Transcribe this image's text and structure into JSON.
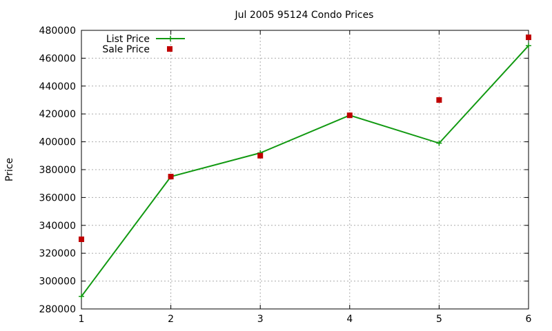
{
  "chart_data": {
    "type": "line",
    "title": "Jul 2005 95124 Condo Prices",
    "xlabel": "",
    "ylabel": "Price",
    "xlim": [
      1,
      6
    ],
    "ylim": [
      280000,
      480000
    ],
    "x_ticks": [
      1,
      2,
      3,
      4,
      5,
      6
    ],
    "y_ticks": [
      280000,
      300000,
      320000,
      340000,
      360000,
      380000,
      400000,
      420000,
      440000,
      460000,
      480000
    ],
    "grid": true,
    "legend_position": "top-left",
    "series": [
      {
        "name": "List Price",
        "style": "line-with-plus-markers",
        "color": "#119911",
        "x": [
          1,
          2,
          3,
          4,
          5,
          6
        ],
        "values": [
          289000,
          375000,
          392000,
          419000,
          399000,
          469000
        ]
      },
      {
        "name": "Sale Price",
        "style": "square-markers",
        "color": "#c00000",
        "x": [
          1,
          2,
          3,
          4,
          5,
          6
        ],
        "values": [
          330000,
          375000,
          390000,
          419000,
          430000,
          475000
        ]
      }
    ]
  }
}
